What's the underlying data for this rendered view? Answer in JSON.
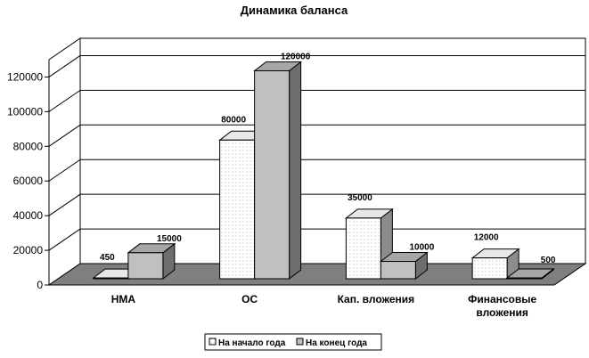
{
  "chart_data": {
    "type": "bar",
    "title": "Динамика баланса",
    "categories": [
      [
        "НМА"
      ],
      [
        "ОС"
      ],
      [
        "Кап. вложения"
      ],
      [
        "Финансовые",
        "вложения"
      ]
    ],
    "series": [
      {
        "name": "На начало года",
        "values": [
          450,
          80000,
          35000,
          12000
        ],
        "pattern": "dotted-white"
      },
      {
        "name": "На конец года",
        "values": [
          15000,
          120000,
          10000,
          500
        ],
        "pattern": "solid-gray"
      }
    ],
    "yticks": [
      0,
      20000,
      40000,
      60000,
      80000,
      100000,
      120000
    ],
    "ylim": [
      0,
      130000
    ],
    "grid": true,
    "legend_position": "bottom",
    "colors": {
      "series1_fill": "#ffffff",
      "series1_dots": "#9a9a9a",
      "series2_front": "#c0c0c0",
      "series2_top": "#a6a6a6",
      "series2_side": "#6e6e6e",
      "floor": "#7f7f7f",
      "wall": "#ffffff",
      "line": "#000000"
    }
  }
}
